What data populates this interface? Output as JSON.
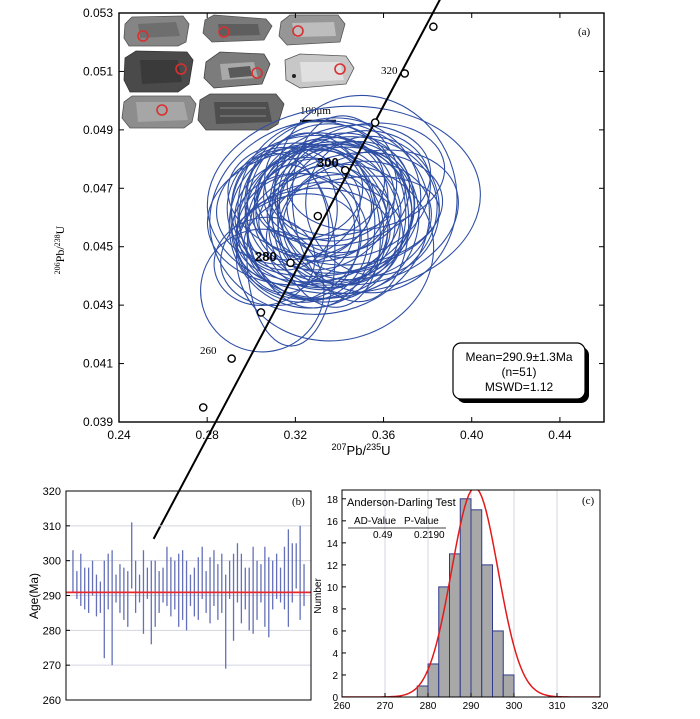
{
  "chart_data": [
    {
      "panel": "(a)",
      "type": "scatter",
      "subtype": "concordia-error-ellipses",
      "xlabel_parts": [
        "207",
        "Pb/",
        "235",
        "U"
      ],
      "ylabel_parts": [
        "206",
        "Pb/",
        "238",
        "U"
      ],
      "xlim": [
        0.24,
        0.46
      ],
      "ylim": [
        0.039,
        0.053
      ],
      "x_ticks": [
        0.24,
        0.28,
        0.32,
        0.36,
        0.4,
        0.44
      ],
      "x_tick_labels": [
        "0.24",
        "0.28",
        "0.32",
        "0.36",
        "0.40",
        "0.44"
      ],
      "y_ticks": [
        0.039,
        0.041,
        0.043,
        0.045,
        0.047,
        0.049,
        0.051,
        0.053
      ],
      "y_tick_labels": [
        "0.039",
        "0.041",
        "0.043",
        "0.045",
        "0.047",
        "0.049",
        "0.051",
        "0.053"
      ],
      "concordia_x": [
        0.2557,
        0.4133
      ],
      "concordia_y": [
        0.035,
        0.0574
      ],
      "concordia_ages": [
        {
          "label": "",
          "x": 0.2782,
          "y": 0.0395
        },
        {
          "label": "260",
          "x": 0.2911,
          "y": 0.04117
        },
        {
          "label": "",
          "x": 0.3044,
          "y": 0.04275
        },
        {
          "label": "280",
          "x": 0.3178,
          "y": 0.04445
        },
        {
          "label": "",
          "x": 0.3302,
          "y": 0.04605
        },
        {
          "label": "300",
          "x": 0.3426,
          "y": 0.04762
        },
        {
          "label": "",
          "x": 0.3562,
          "y": 0.04925
        },
        {
          "label": "320",
          "x": 0.3696,
          "y": 0.05093
        },
        {
          "label": "",
          "x": 0.3826,
          "y": 0.05253
        }
      ],
      "ellipses": [
        [
          0.318,
          0.0447,
          0.02,
          0.0031,
          0
        ],
        [
          0.305,
          0.0435,
          0.028,
          0.0021,
          14
        ],
        [
          0.338,
          0.0448,
          0.045,
          0.003,
          14
        ],
        [
          0.342,
          0.0466,
          0.062,
          0.0032,
          4
        ],
        [
          0.306,
          0.0445,
          0.023,
          0.0015,
          12
        ],
        [
          0.331,
          0.0462,
          0.042,
          0.0026,
          -6
        ],
        [
          0.352,
          0.0468,
          0.041,
          0.0034,
          16
        ],
        [
          0.335,
          0.0461,
          0.038,
          0.0024,
          10
        ],
        [
          0.326,
          0.0457,
          0.036,
          0.0028,
          6
        ],
        [
          0.343,
          0.0465,
          0.031,
          0.0024,
          22
        ],
        [
          0.323,
          0.0453,
          0.03,
          0.0022,
          -10
        ],
        [
          0.347,
          0.0463,
          0.04,
          0.0019,
          8
        ],
        [
          0.333,
          0.0464,
          0.033,
          0.0021,
          28
        ],
        [
          0.319,
          0.0456,
          0.028,
          0.0019,
          14
        ],
        [
          0.336,
          0.0472,
          0.03,
          0.002,
          -8
        ],
        [
          0.353,
          0.046,
          0.042,
          0.0022,
          18
        ],
        [
          0.327,
          0.0459,
          0.029,
          0.003,
          4
        ],
        [
          0.341,
          0.0457,
          0.045,
          0.0016,
          12
        ],
        [
          0.315,
          0.0463,
          0.024,
          0.0021,
          2
        ],
        [
          0.338,
          0.0461,
          0.028,
          0.0025,
          32
        ],
        [
          0.326,
          0.0466,
          0.037,
          0.0019,
          -12
        ],
        [
          0.347,
          0.0468,
          0.035,
          0.0021,
          20
        ],
        [
          0.331,
          0.0452,
          0.038,
          0.002,
          8
        ],
        [
          0.321,
          0.0463,
          0.029,
          0.0017,
          18
        ],
        [
          0.34,
          0.0469,
          0.03,
          0.0015,
          6
        ],
        [
          0.334,
          0.0458,
          0.024,
          0.0029,
          10
        ],
        [
          0.344,
          0.046,
          0.032,
          0.0026,
          -4
        ],
        [
          0.329,
          0.0461,
          0.026,
          0.0014,
          15
        ],
        [
          0.337,
          0.0466,
          0.04,
          0.0028,
          12
        ],
        [
          0.318,
          0.0449,
          0.033,
          0.0018,
          22
        ],
        [
          0.352,
          0.0474,
          0.036,
          0.0018,
          10
        ],
        [
          0.324,
          0.046,
          0.044,
          0.0023,
          6
        ],
        [
          0.336,
          0.0455,
          0.03,
          0.0019,
          25
        ],
        [
          0.345,
          0.0463,
          0.026,
          0.0032,
          8
        ],
        [
          0.33,
          0.0467,
          0.032,
          0.0022,
          -2
        ],
        [
          0.322,
          0.0458,
          0.027,
          0.0026,
          12
        ],
        [
          0.339,
          0.046,
          0.046,
          0.0027,
          16
        ],
        [
          0.333,
          0.047,
          0.028,
          0.0017,
          20
        ],
        [
          0.328,
          0.0454,
          0.035,
          0.0016,
          4
        ],
        [
          0.348,
          0.0459,
          0.034,
          0.002,
          12
        ],
        [
          0.313,
          0.0458,
          0.022,
          0.0024,
          8
        ],
        [
          0.342,
          0.0471,
          0.04,
          0.002,
          14
        ],
        [
          0.332,
          0.0462,
          0.038,
          0.0031,
          10
        ],
        [
          0.326,
          0.0468,
          0.025,
          0.0015,
          18
        ],
        [
          0.355,
          0.0464,
          0.03,
          0.0024,
          24
        ],
        [
          0.335,
          0.0457,
          0.027,
          0.0021,
          -6
        ],
        [
          0.32,
          0.0464,
          0.036,
          0.002,
          10
        ],
        [
          0.344,
          0.0467,
          0.029,
          0.0018,
          30
        ],
        [
          0.329,
          0.0456,
          0.031,
          0.0024,
          12
        ],
        [
          0.338,
          0.0463,
          0.036,
          0.0022,
          8
        ],
        [
          0.331,
          0.046,
          0.05,
          0.0033,
          10
        ]
      ],
      "ellipse_format": "[center_x, center_y, semi_axis_x, semi_axis_y, rotation_deg]",
      "age_labels_bold": [
        "300",
        "280"
      ],
      "panel_label": "(a)",
      "scale_bar_label": "100μm",
      "stats": {
        "mean": "Mean=290.9±1.3Ma",
        "n": "(n=51)",
        "mswd": "MSWD=1.12"
      }
    },
    {
      "panel": "(b)",
      "type": "bar",
      "subtype": "error-bars",
      "ylabel": "Age(Ma)",
      "ylim": [
        260,
        320
      ],
      "y_ticks": [
        260,
        270,
        280,
        290,
        300,
        310,
        320
      ],
      "y_tick_labels": [
        "260",
        "270",
        "280",
        "290",
        "300",
        "310",
        "320"
      ],
      "mean_line": 290.9,
      "bars_low": [
        291,
        289,
        287,
        286,
        285,
        290,
        284,
        285,
        272,
        286,
        270,
        288,
        285,
        283,
        281,
        292,
        285,
        288,
        279,
        289,
        276,
        281,
        285,
        288,
        287,
        284,
        286,
        281,
        283,
        280,
        287,
        284,
        283,
        289,
        285,
        282,
        287,
        283,
        285,
        269,
        289,
        277,
        288,
        282,
        286,
        280,
        279,
        283,
        288,
        281,
        278,
        286,
        289,
        288,
        286,
        281,
        288,
        292,
        283,
        287
      ],
      "bars_high": [
        303,
        297,
        302,
        298,
        298,
        300,
        296,
        294,
        300,
        302,
        303,
        296,
        299,
        298,
        297,
        311,
        300,
        296,
        303,
        298,
        300,
        300,
        297,
        298,
        304,
        301,
        300,
        302,
        303,
        300,
        296,
        298,
        301,
        304,
        297,
        301,
        303,
        299,
        302,
        296,
        300,
        302,
        305,
        302,
        298,
        298,
        304,
        300,
        299,
        304,
        301,
        300,
        302,
        298,
        304,
        309,
        305,
        305,
        310,
        299
      ],
      "panel_label": "(b)"
    },
    {
      "panel": "(c)",
      "type": "bar",
      "subtype": "histogram-with-normal-curve",
      "xlim": [
        260,
        320
      ],
      "ylim": [
        0,
        18.8
      ],
      "x_ticks": [
        260,
        270,
        280,
        290,
        300,
        310,
        320
      ],
      "x_tick_labels": [
        "260",
        "270",
        "280",
        "290",
        "300",
        "310",
        "320"
      ],
      "y_ticks": [
        0,
        2,
        4,
        6,
        8,
        10,
        12,
        14,
        16,
        18
      ],
      "y_tick_labels": [
        "0",
        "2",
        "4",
        "6",
        "8",
        "10",
        "12",
        "14",
        "16",
        "18"
      ],
      "ylabel": "Number",
      "bin_edges": [
        277.5,
        280,
        282.5,
        285,
        287.5,
        290,
        292.5,
        295,
        297.5,
        300,
        302.5
      ],
      "bin_counts": [
        1,
        3,
        10,
        13,
        18,
        17,
        12,
        6,
        2,
        0
      ],
      "normal_mean": 290.9,
      "normal_sd": 5.4,
      "normal_peak": 19.0,
      "test_title": "Anderson-Darling Test",
      "col1_header": "AD-Value",
      "col2_header": "P-Value",
      "col1_value": "0.49",
      "col2_value": "0.2190",
      "panel_label": "(c)"
    }
  ],
  "colors": {
    "ellipse": "#2f4fa5",
    "concordia": "#000000",
    "error_bar": "#6470b8",
    "mean_line": "#e8282c",
    "hist_fill": "#a8a8a8",
    "hist_edge": "#2e3a8c",
    "curve": "#e31a1c",
    "grid": "#d4d4e0"
  }
}
